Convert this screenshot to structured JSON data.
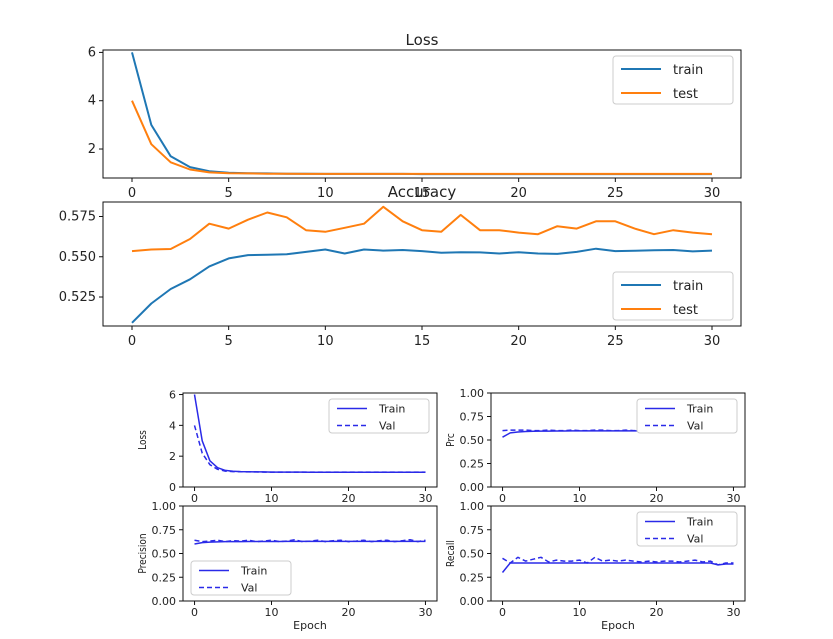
{
  "chart_data": [
    {
      "id": "loss-top",
      "type": "line",
      "title": "Loss",
      "xlabel": "",
      "ylabel": "",
      "xlim": [
        -1.5,
        31.5
      ],
      "ylim": [
        0.8,
        6.1
      ],
      "xticks": [
        0,
        5,
        10,
        15,
        20,
        25,
        30
      ],
      "yticks": [
        2,
        4,
        6
      ],
      "legend_position": "top-right",
      "series": [
        {
          "name": "train",
          "color": "#1f77b4",
          "dash": "",
          "x": [
            0,
            1,
            2,
            3,
            4,
            5,
            6,
            7,
            8,
            9,
            10,
            11,
            12,
            13,
            14,
            15,
            16,
            17,
            18,
            19,
            20,
            21,
            22,
            23,
            24,
            25,
            26,
            27,
            28,
            29,
            30
          ],
          "y": [
            6.0,
            3.0,
            1.7,
            1.25,
            1.08,
            1.02,
            1.0,
            0.99,
            0.98,
            0.98,
            0.97,
            0.97,
            0.97,
            0.97,
            0.97,
            0.96,
            0.96,
            0.96,
            0.96,
            0.96,
            0.96,
            0.96,
            0.96,
            0.96,
            0.96,
            0.96,
            0.96,
            0.96,
            0.96,
            0.96,
            0.96
          ]
        },
        {
          "name": "test",
          "color": "#ff7f0e",
          "dash": "",
          "x": [
            0,
            1,
            2,
            3,
            4,
            5,
            6,
            7,
            8,
            9,
            10,
            11,
            12,
            13,
            14,
            15,
            16,
            17,
            18,
            19,
            20,
            21,
            22,
            23,
            24,
            25,
            26,
            27,
            28,
            29,
            30
          ],
          "y": [
            4.0,
            2.2,
            1.45,
            1.15,
            1.03,
            1.0,
            0.99,
            0.98,
            0.98,
            0.97,
            0.97,
            0.97,
            0.97,
            0.97,
            0.97,
            0.97,
            0.97,
            0.97,
            0.97,
            0.97,
            0.97,
            0.97,
            0.97,
            0.97,
            0.97,
            0.97,
            0.97,
            0.97,
            0.97,
            0.97,
            0.97
          ]
        }
      ]
    },
    {
      "id": "acc-top",
      "type": "line",
      "title": "Accuracy",
      "xlabel": "",
      "ylabel": "",
      "xlim": [
        -1.5,
        31.5
      ],
      "ylim": [
        0.507,
        0.584
      ],
      "xticks": [
        0,
        5,
        10,
        15,
        20,
        25,
        30
      ],
      "yticks": [
        0.525,
        0.55,
        0.575
      ],
      "ytick_labels": [
        "0.525",
        "0.550",
        "0.575"
      ],
      "legend_position": "bottom-right",
      "series": [
        {
          "name": "train",
          "color": "#1f77b4",
          "dash": "",
          "x": [
            0,
            1,
            2,
            3,
            4,
            5,
            6,
            7,
            8,
            9,
            10,
            11,
            12,
            13,
            14,
            15,
            16,
            17,
            18,
            19,
            20,
            21,
            22,
            23,
            24,
            25,
            26,
            27,
            28,
            29,
            30
          ],
          "y": [
            0.509,
            0.521,
            0.53,
            0.536,
            0.544,
            0.549,
            0.551,
            0.5512,
            0.5515,
            0.553,
            0.5545,
            0.552,
            0.5545,
            0.5538,
            0.5542,
            0.5535,
            0.5525,
            0.5528,
            0.5527,
            0.552,
            0.5528,
            0.552,
            0.5518,
            0.553,
            0.555,
            0.5535,
            0.5537,
            0.5541,
            0.5542,
            0.5533,
            0.5538
          ]
        },
        {
          "name": "test",
          "color": "#ff7f0e",
          "dash": "",
          "x": [
            0,
            1,
            2,
            3,
            4,
            5,
            6,
            7,
            8,
            9,
            10,
            11,
            12,
            13,
            14,
            15,
            16,
            17,
            18,
            19,
            20,
            21,
            22,
            23,
            24,
            25,
            26,
            27,
            28,
            29,
            30
          ],
          "y": [
            0.5535,
            0.5545,
            0.5548,
            0.561,
            0.5705,
            0.5675,
            0.573,
            0.5775,
            0.5745,
            0.5665,
            0.5655,
            0.568,
            0.5705,
            0.581,
            0.572,
            0.5665,
            0.5655,
            0.576,
            0.5665,
            0.5665,
            0.565,
            0.564,
            0.569,
            0.5675,
            0.572,
            0.572,
            0.5675,
            0.564,
            0.5665,
            0.565,
            0.564
          ]
        }
      ]
    },
    {
      "id": "loss-small",
      "type": "line",
      "title": "",
      "xlabel": "",
      "ylabel": "Loss",
      "xlim": [
        -1.5,
        31.5
      ],
      "ylim": [
        0,
        6.1
      ],
      "xticks": [
        0,
        10,
        20,
        30
      ],
      "yticks": [
        0,
        2,
        4,
        6
      ],
      "legend_position": "top-right",
      "series": [
        {
          "name": "Train",
          "color": "#2a2ae8",
          "dash": "",
          "x": [
            0,
            1,
            2,
            3,
            4,
            5,
            6,
            7,
            8,
            9,
            10,
            11,
            12,
            13,
            14,
            15,
            16,
            17,
            18,
            19,
            20,
            21,
            22,
            23,
            24,
            25,
            26,
            27,
            28,
            29,
            30
          ],
          "y": [
            6.0,
            3.0,
            1.7,
            1.25,
            1.08,
            1.02,
            1.0,
            0.99,
            0.98,
            0.98,
            0.97,
            0.97,
            0.97,
            0.97,
            0.97,
            0.96,
            0.96,
            0.96,
            0.96,
            0.96,
            0.96,
            0.96,
            0.96,
            0.96,
            0.96,
            0.96,
            0.96,
            0.96,
            0.96,
            0.96,
            0.96
          ]
        },
        {
          "name": "Val",
          "color": "#2a2ae8",
          "dash": "5,3",
          "x": [
            0,
            1,
            2,
            3,
            4,
            5,
            6,
            7,
            8,
            9,
            10,
            11,
            12,
            13,
            14,
            15,
            16,
            17,
            18,
            19,
            20,
            21,
            22,
            23,
            24,
            25,
            26,
            27,
            28,
            29,
            30
          ],
          "y": [
            4.0,
            2.2,
            1.45,
            1.15,
            1.03,
            1.0,
            0.99,
            0.98,
            0.98,
            0.97,
            0.97,
            0.97,
            0.97,
            0.97,
            0.97,
            0.97,
            0.97,
            0.97,
            0.97,
            0.97,
            0.97,
            0.97,
            0.97,
            0.97,
            0.97,
            0.97,
            0.97,
            0.97,
            0.97,
            0.97,
            0.97
          ]
        }
      ]
    },
    {
      "id": "prc-small",
      "type": "line",
      "title": "",
      "xlabel": "",
      "ylabel": "Prc",
      "xlim": [
        -1.5,
        31.5
      ],
      "ylim": [
        0,
        1.0
      ],
      "xticks": [
        0,
        10,
        20,
        30
      ],
      "yticks": [
        0,
        0.25,
        0.5,
        0.75,
        1.0
      ],
      "ytick_labels": [
        "0.00",
        "0.25",
        "0.50",
        "0.75",
        "1.00"
      ],
      "legend_position": "top-right",
      "series": [
        {
          "name": "Train",
          "color": "#2a2ae8",
          "dash": "",
          "x": [
            0,
            1,
            2,
            3,
            4,
            5,
            6,
            7,
            8,
            9,
            10,
            11,
            12,
            13,
            14,
            15,
            16,
            17,
            18,
            19,
            20,
            21,
            22,
            23,
            24,
            25,
            26,
            27,
            28,
            29,
            30
          ],
          "y": [
            0.53,
            0.575,
            0.585,
            0.59,
            0.593,
            0.595,
            0.595,
            0.596,
            0.596,
            0.597,
            0.597,
            0.597,
            0.597,
            0.597,
            0.597,
            0.597,
            0.597,
            0.597,
            0.597,
            0.597,
            0.597,
            0.597,
            0.597,
            0.597,
            0.597,
            0.597,
            0.597,
            0.597,
            0.597,
            0.597,
            0.597
          ]
        },
        {
          "name": "Val",
          "color": "#2a2ae8",
          "dash": "5,3",
          "x": [
            0,
            1,
            2,
            3,
            4,
            5,
            6,
            7,
            8,
            9,
            10,
            11,
            12,
            13,
            14,
            15,
            16,
            17,
            18,
            19,
            20,
            21,
            22,
            23,
            24,
            25,
            26,
            27,
            28,
            29,
            30
          ],
          "y": [
            0.6,
            0.605,
            0.605,
            0.605,
            0.6,
            0.6,
            0.605,
            0.6,
            0.6,
            0.605,
            0.6,
            0.6,
            0.605,
            0.605,
            0.6,
            0.6,
            0.605,
            0.6,
            0.6,
            0.605,
            0.6,
            0.6,
            0.6,
            0.605,
            0.6,
            0.6,
            0.605,
            0.6,
            0.6,
            0.605,
            0.6
          ]
        }
      ]
    },
    {
      "id": "precision-small",
      "type": "line",
      "title": "",
      "xlabel": "Epoch",
      "ylabel": "Precision",
      "xlim": [
        -1.5,
        31.5
      ],
      "ylim": [
        0,
        1.0
      ],
      "xticks": [
        0,
        10,
        20,
        30
      ],
      "yticks": [
        0,
        0.25,
        0.5,
        0.75,
        1.0
      ],
      "ytick_labels": [
        "0.00",
        "0.25",
        "0.50",
        "0.75",
        "1.00"
      ],
      "legend_position": "bottom-left",
      "series": [
        {
          "name": "Train",
          "color": "#2a2ae8",
          "dash": "",
          "x": [
            0,
            1,
            2,
            3,
            4,
            5,
            6,
            7,
            8,
            9,
            10,
            11,
            12,
            13,
            14,
            15,
            16,
            17,
            18,
            19,
            20,
            21,
            22,
            23,
            24,
            25,
            26,
            27,
            28,
            29,
            30
          ],
          "y": [
            0.6,
            0.615,
            0.62,
            0.622,
            0.625,
            0.625,
            0.625,
            0.626,
            0.626,
            0.626,
            0.626,
            0.626,
            0.627,
            0.627,
            0.627,
            0.627,
            0.627,
            0.627,
            0.627,
            0.627,
            0.627,
            0.627,
            0.627,
            0.627,
            0.627,
            0.627,
            0.627,
            0.627,
            0.627,
            0.627,
            0.627
          ]
        },
        {
          "name": "Val",
          "color": "#2a2ae8",
          "dash": "5,3",
          "x": [
            0,
            1,
            2,
            3,
            4,
            5,
            6,
            7,
            8,
            9,
            10,
            11,
            12,
            13,
            14,
            15,
            16,
            17,
            18,
            19,
            20,
            21,
            22,
            23,
            24,
            25,
            26,
            27,
            28,
            29,
            30
          ],
          "y": [
            0.64,
            0.625,
            0.63,
            0.64,
            0.625,
            0.635,
            0.63,
            0.64,
            0.625,
            0.63,
            0.64,
            0.625,
            0.63,
            0.645,
            0.625,
            0.63,
            0.64,
            0.625,
            0.635,
            0.64,
            0.625,
            0.63,
            0.64,
            0.625,
            0.635,
            0.64,
            0.625,
            0.635,
            0.645,
            0.625,
            0.64
          ]
        }
      ]
    },
    {
      "id": "recall-small",
      "type": "line",
      "title": "",
      "xlabel": "Epoch",
      "ylabel": "Recall",
      "xlim": [
        -1.5,
        31.5
      ],
      "ylim": [
        0,
        1.0
      ],
      "xticks": [
        0,
        10,
        20,
        30
      ],
      "yticks": [
        0,
        0.25,
        0.5,
        0.75,
        1.0
      ],
      "ytick_labels": [
        "0.00",
        "0.25",
        "0.50",
        "0.75",
        "1.00"
      ],
      "legend_position": "top-right",
      "series": [
        {
          "name": "Train",
          "color": "#2a2ae8",
          "dash": "",
          "x": [
            0,
            1,
            2,
            3,
            4,
            5,
            6,
            7,
            8,
            9,
            10,
            11,
            12,
            13,
            14,
            15,
            16,
            17,
            18,
            19,
            20,
            21,
            22,
            23,
            24,
            25,
            26,
            27,
            28,
            29,
            30
          ],
          "y": [
            0.3,
            0.4,
            0.4,
            0.4,
            0.4,
            0.4,
            0.4,
            0.4,
            0.4,
            0.4,
            0.4,
            0.4,
            0.4,
            0.4,
            0.4,
            0.4,
            0.4,
            0.4,
            0.4,
            0.4,
            0.4,
            0.4,
            0.4,
            0.4,
            0.4,
            0.4,
            0.4,
            0.4,
            0.38,
            0.39,
            0.39
          ]
        },
        {
          "name": "Val",
          "color": "#2a2ae8",
          "dash": "5,3",
          "x": [
            0,
            1,
            2,
            3,
            4,
            5,
            6,
            7,
            8,
            9,
            10,
            11,
            12,
            13,
            14,
            15,
            16,
            17,
            18,
            19,
            20,
            21,
            22,
            23,
            24,
            25,
            26,
            27,
            28,
            29,
            30
          ],
          "y": [
            0.45,
            0.4,
            0.46,
            0.42,
            0.44,
            0.46,
            0.41,
            0.43,
            0.42,
            0.42,
            0.43,
            0.4,
            0.46,
            0.42,
            0.43,
            0.42,
            0.43,
            0.42,
            0.41,
            0.42,
            0.41,
            0.42,
            0.42,
            0.41,
            0.42,
            0.43,
            0.41,
            0.42,
            0.38,
            0.4,
            0.4
          ]
        }
      ]
    }
  ]
}
